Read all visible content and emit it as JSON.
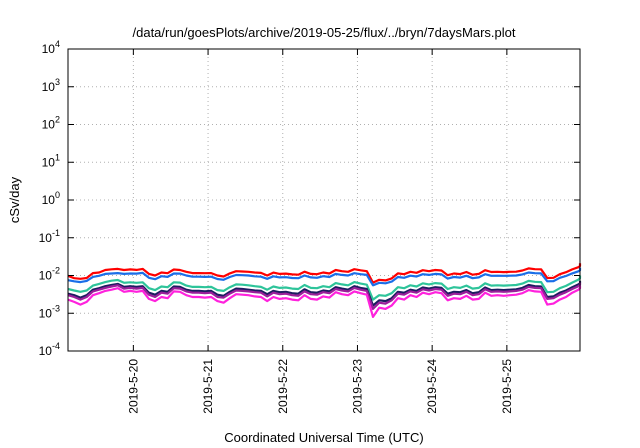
{
  "chart_data": {
    "type": "line",
    "title": "/data/run/goesPlots/archive/2019-05-25/flux/../bryn/7daysMars.plot",
    "xlabel": "Coordinated Universal Time (UTC)",
    "ylabel": "cSv/day",
    "yscale": "log",
    "ylim": [
      0.0001,
      10000
    ],
    "y_ticks": [
      {
        "value": 0.0001,
        "base": "10",
        "exp": "-4"
      },
      {
        "value": 0.001,
        "base": "10",
        "exp": "-3"
      },
      {
        "value": 0.01,
        "base": "10",
        "exp": "-2"
      },
      {
        "value": 0.1,
        "base": "10",
        "exp": "-1"
      },
      {
        "value": 1,
        "base": "10",
        "exp": "0"
      },
      {
        "value": 10,
        "base": "10",
        "exp": "1"
      },
      {
        "value": 100,
        "base": "10",
        "exp": "2"
      },
      {
        "value": 1000,
        "base": "10",
        "exp": "3"
      },
      {
        "value": 10000,
        "base": "10",
        "exp": "4"
      }
    ],
    "xlim": [
      "2019-05-19T03:00",
      "2019-05-25T23:30"
    ],
    "x_ticks": [
      "2019-5-20",
      "2019-5-21",
      "2019-5-22",
      "2019-5-23",
      "2019-5-24",
      "2019-5-25"
    ],
    "x_tick_dates": [
      "2019-05-20",
      "2019-05-21",
      "2019-05-22",
      "2019-05-23",
      "2019-05-24",
      "2019-05-25"
    ],
    "grid": true,
    "sample_hours": 2,
    "x_start": "2019-05-19T03:00",
    "series": [
      {
        "color": "#ff0000",
        "values": [
          0.0098,
          0.0085,
          0.0082,
          0.0086,
          0.0116,
          0.012,
          0.014,
          0.0146,
          0.015,
          0.014,
          0.0145,
          0.0141,
          0.015,
          0.011,
          0.01,
          0.012,
          0.0115,
          0.0144,
          0.014,
          0.0125,
          0.0116,
          0.0116,
          0.0115,
          0.0116,
          0.01,
          0.0094,
          0.0114,
          0.013,
          0.0128,
          0.0125,
          0.012,
          0.0117,
          0.01,
          0.0119,
          0.011,
          0.0112,
          0.0107,
          0.0105,
          0.0126,
          0.011,
          0.0108,
          0.012,
          0.0113,
          0.014,
          0.013,
          0.0125,
          0.0147,
          0.0137,
          0.013,
          0.0065,
          0.0077,
          0.0074,
          0.0084,
          0.0114,
          0.0108,
          0.0125,
          0.0118,
          0.0138,
          0.013,
          0.014,
          0.0136,
          0.0102,
          0.0113,
          0.0109,
          0.0124,
          0.0105,
          0.011,
          0.0138,
          0.0124,
          0.0125,
          0.0123,
          0.0125,
          0.0126,
          0.0136,
          0.0154,
          0.0147,
          0.0146,
          0.0086,
          0.0087,
          0.0108,
          0.0122,
          0.0145,
          0.0166,
          0.0178,
          0.0194,
          0.0208,
          0.0212
        ]
      },
      {
        "color": "#1a6ee8",
        "values": [
          0.0075,
          0.007,
          0.0067,
          0.0072,
          0.0092,
          0.0098,
          0.011,
          0.0113,
          0.0116,
          0.011,
          0.0113,
          0.0112,
          0.0117,
          0.0087,
          0.008,
          0.0096,
          0.0092,
          0.0113,
          0.0112,
          0.01,
          0.0093,
          0.0093,
          0.0092,
          0.0093,
          0.0081,
          0.0077,
          0.0091,
          0.0103,
          0.0102,
          0.01,
          0.0095,
          0.0093,
          0.0082,
          0.0095,
          0.0089,
          0.009,
          0.0086,
          0.0085,
          0.01,
          0.0089,
          0.0087,
          0.0096,
          0.0091,
          0.011,
          0.0104,
          0.01,
          0.0115,
          0.0108,
          0.0104,
          0.0055,
          0.0064,
          0.0062,
          0.0069,
          0.0091,
          0.0087,
          0.0099,
          0.0094,
          0.0108,
          0.0104,
          0.011,
          0.0107,
          0.0083,
          0.0091,
          0.0088,
          0.0098,
          0.0085,
          0.0089,
          0.0108,
          0.0098,
          0.0099,
          0.0098,
          0.0099,
          0.01,
          0.0107,
          0.012,
          0.0115,
          0.0114,
          0.007,
          0.0071,
          0.0087,
          0.0097,
          0.0114,
          0.0129,
          0.0138,
          0.0148,
          0.0157,
          0.016
        ]
      },
      {
        "color": "#2ec49a",
        "values": [
          0.0044,
          0.004,
          0.0037,
          0.004,
          0.0054,
          0.006,
          0.0067,
          0.0073,
          0.0076,
          0.0064,
          0.0066,
          0.0064,
          0.0066,
          0.0046,
          0.0041,
          0.0051,
          0.0049,
          0.0066,
          0.0065,
          0.0054,
          0.005,
          0.005,
          0.0049,
          0.005,
          0.0041,
          0.0039,
          0.0049,
          0.0058,
          0.0057,
          0.0055,
          0.0052,
          0.005,
          0.0042,
          0.0051,
          0.0047,
          0.0048,
          0.0045,
          0.0044,
          0.0056,
          0.0047,
          0.0046,
          0.0052,
          0.0049,
          0.0063,
          0.0058,
          0.0055,
          0.0067,
          0.0061,
          0.0057,
          0.0023,
          0.003,
          0.0029,
          0.0034,
          0.0049,
          0.0046,
          0.0055,
          0.0051,
          0.0062,
          0.0058,
          0.0063,
          0.0061,
          0.0044,
          0.0049,
          0.0047,
          0.0054,
          0.0045,
          0.0047,
          0.0062,
          0.0054,
          0.0055,
          0.0054,
          0.0055,
          0.0056,
          0.0061,
          0.0072,
          0.0068,
          0.0067,
          0.0036,
          0.0037,
          0.0046,
          0.0053,
          0.0065,
          0.0078,
          0.0085,
          0.0093,
          0.0098,
          0.01
        ]
      },
      {
        "color": "#1c1c60",
        "values": [
          0.0033,
          0.003,
          0.0026,
          0.003,
          0.0042,
          0.0046,
          0.0052,
          0.0056,
          0.006,
          0.005,
          0.0052,
          0.005,
          0.0052,
          0.0035,
          0.0031,
          0.0039,
          0.0037,
          0.0051,
          0.005,
          0.0042,
          0.0039,
          0.0039,
          0.0038,
          0.0039,
          0.0031,
          0.0029,
          0.0037,
          0.0045,
          0.0044,
          0.0042,
          0.004,
          0.0039,
          0.0032,
          0.0039,
          0.0036,
          0.0037,
          0.0034,
          0.0033,
          0.0043,
          0.0036,
          0.0035,
          0.004,
          0.0038,
          0.0049,
          0.0045,
          0.0042,
          0.0052,
          0.0047,
          0.0044,
          0.0016,
          0.0022,
          0.0021,
          0.0025,
          0.0037,
          0.0035,
          0.0042,
          0.0039,
          0.0048,
          0.0045,
          0.0049,
          0.0047,
          0.0033,
          0.0037,
          0.0036,
          0.0041,
          0.0034,
          0.0036,
          0.0048,
          0.0041,
          0.0042,
          0.0041,
          0.0042,
          0.0043,
          0.0047,
          0.0056,
          0.0052,
          0.0051,
          0.0027,
          0.0028,
          0.0035,
          0.004,
          0.0049,
          0.0058,
          0.0063,
          0.0068,
          0.0071,
          0.0072
        ]
      },
      {
        "color": "#9a1f9a",
        "values": [
          0.003,
          0.0027,
          0.0023,
          0.0027,
          0.0038,
          0.0042,
          0.0047,
          0.0051,
          0.0055,
          0.0045,
          0.0047,
          0.0045,
          0.0047,
          0.0031,
          0.0027,
          0.0035,
          0.0033,
          0.0046,
          0.0045,
          0.0038,
          0.0035,
          0.0035,
          0.0034,
          0.0035,
          0.0027,
          0.0026,
          0.0033,
          0.004,
          0.0039,
          0.0038,
          0.0036,
          0.0035,
          0.0028,
          0.0035,
          0.0032,
          0.0033,
          0.003,
          0.0029,
          0.0038,
          0.0032,
          0.0031,
          0.0036,
          0.0034,
          0.0044,
          0.004,
          0.0038,
          0.0047,
          0.0042,
          0.0039,
          0.0013,
          0.0019,
          0.0018,
          0.0022,
          0.0033,
          0.0031,
          0.0038,
          0.0035,
          0.0043,
          0.004,
          0.0044,
          0.0042,
          0.0029,
          0.0033,
          0.0032,
          0.0037,
          0.003,
          0.0032,
          0.0043,
          0.0037,
          0.0038,
          0.0037,
          0.0038,
          0.0039,
          0.0042,
          0.005,
          0.0047,
          0.0046,
          0.0024,
          0.0025,
          0.0031,
          0.0036,
          0.0044,
          0.0052,
          0.0056,
          0.0061,
          0.0064,
          0.0065
        ]
      },
      {
        "color": "#ff22dd",
        "values": [
          0.0023,
          0.002,
          0.0017,
          0.002,
          0.003,
          0.0034,
          0.0039,
          0.0042,
          0.0046,
          0.0037,
          0.0039,
          0.0037,
          0.0039,
          0.0024,
          0.0021,
          0.0027,
          0.0025,
          0.0038,
          0.0037,
          0.003,
          0.0027,
          0.0027,
          0.0026,
          0.0027,
          0.0021,
          0.0019,
          0.0025,
          0.0032,
          0.0031,
          0.003,
          0.0028,
          0.0027,
          0.0021,
          0.0027,
          0.0024,
          0.0025,
          0.0023,
          0.0022,
          0.003,
          0.0024,
          0.0023,
          0.0028,
          0.0026,
          0.0036,
          0.0032,
          0.003,
          0.0038,
          0.0034,
          0.0031,
          0.0008,
          0.0014,
          0.0013,
          0.0016,
          0.0025,
          0.0023,
          0.003,
          0.0027,
          0.0035,
          0.0032,
          0.0036,
          0.0034,
          0.0022,
          0.0025,
          0.0024,
          0.0029,
          0.0023,
          0.0024,
          0.0035,
          0.0029,
          0.003,
          0.0029,
          0.003,
          0.0031,
          0.0034,
          0.0041,
          0.0038,
          0.0037,
          0.0017,
          0.0018,
          0.0023,
          0.0027,
          0.0035,
          0.0042,
          0.0046,
          0.005,
          0.0052,
          0.0053
        ]
      }
    ]
  }
}
